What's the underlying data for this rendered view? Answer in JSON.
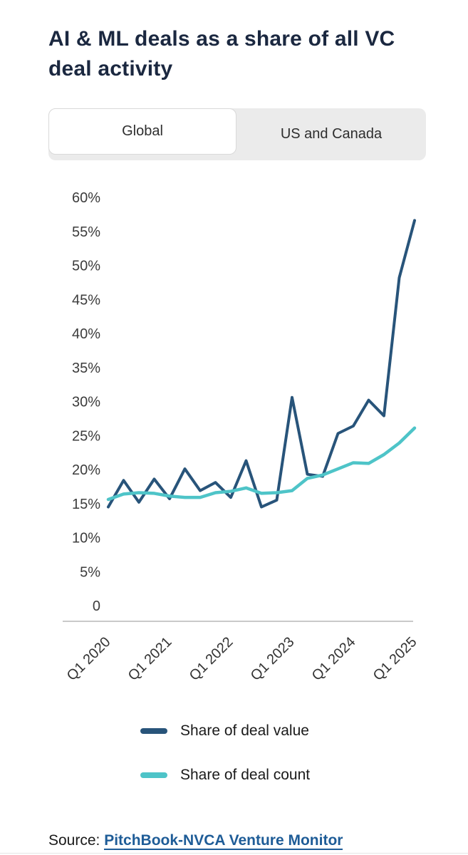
{
  "title": "AI & ML deals as a share of all VC deal activity",
  "tabs": [
    {
      "label": "Global",
      "active": true
    },
    {
      "label": "US and Canada",
      "active": false
    }
  ],
  "source": {
    "prefix": "Source:",
    "link_text": "PitchBook-NVCA Venture Monitor"
  },
  "colors": {
    "deal_value_line": "#28547A",
    "deal_count_line": "#4EC4C8",
    "title_navy": "#1B2840",
    "link_blue": "#1E5C97",
    "tab_gray": "#ebebeb",
    "axis_line": "#c9c9c9"
  },
  "chart_data": {
    "type": "line",
    "title": "AI & ML deals as a share of all VC deal activity",
    "categories": [
      "Q1 2020",
      "Q2 2020",
      "Q3 2020",
      "Q4 2020",
      "Q1 2021",
      "Q2 2021",
      "Q3 2021",
      "Q4 2021",
      "Q1 2022",
      "Q2 2022",
      "Q3 2022",
      "Q4 2022",
      "Q1 2023",
      "Q2 2023",
      "Q3 2023",
      "Q4 2023",
      "Q1 2024",
      "Q2 2024",
      "Q3 2024",
      "Q4 2024",
      "Q1 2025"
    ],
    "series": [
      {
        "name": "Share of deal value",
        "color": "#28547A",
        "values": [
          14.5,
          18.4,
          15.2,
          18.6,
          15.7,
          20.1,
          16.9,
          18.1,
          15.9,
          21.3,
          14.5,
          15.5,
          30.6,
          19.3,
          19.0,
          25.3,
          26.4,
          30.2,
          27.9,
          48.2,
          56.6
        ]
      },
      {
        "name": "Share of deal count",
        "color": "#4EC4C8",
        "values": [
          15.6,
          16.4,
          16.6,
          16.5,
          16.1,
          15.9,
          15.9,
          16.6,
          16.8,
          17.3,
          16.5,
          16.6,
          16.9,
          18.7,
          19.2,
          20.1,
          21.0,
          20.9,
          22.2,
          23.9,
          26.1
        ]
      }
    ],
    "y_axis": {
      "unit": "%",
      "min": 0,
      "max": 60,
      "grid": false,
      "ticks": [
        {
          "label": "60%",
          "value": 60
        },
        {
          "label": "55%",
          "value": 55
        },
        {
          "label": "50%",
          "value": 50
        },
        {
          "label": "45%",
          "value": 45
        },
        {
          "label": "40%",
          "value": 40
        },
        {
          "label": "35%",
          "value": 35
        },
        {
          "label": "30%",
          "value": 30
        },
        {
          "label": "25%",
          "value": 25
        },
        {
          "label": "20%",
          "value": 20
        },
        {
          "label": "15%",
          "value": 15
        },
        {
          "label": "10%",
          "value": 10
        },
        {
          "label": "5%",
          "value": 5
        },
        {
          "label": "0",
          "value": 0
        }
      ]
    },
    "x_axis": {
      "ticks": [
        {
          "label": "Q1 2020",
          "index": 0
        },
        {
          "label": "Q1 2021",
          "index": 4
        },
        {
          "label": "Q1 2022",
          "index": 8
        },
        {
          "label": "Q1 2023",
          "index": 12
        },
        {
          "label": "Q1 2024",
          "index": 16
        },
        {
          "label": "Q1 2025",
          "index": 20
        }
      ],
      "label_rotation_deg": -45
    },
    "legend_position": "bottom"
  }
}
